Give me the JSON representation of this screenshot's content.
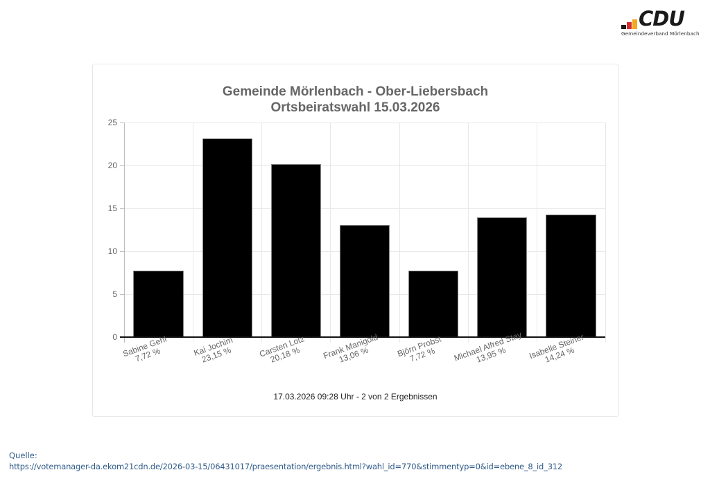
{
  "logo": {
    "wordmark": "CDU",
    "subtitle": "Gemeindeverband Mörlenbach",
    "bar_colors": [
      "#1a1a1a",
      "#d32f2f",
      "#f5a623"
    ]
  },
  "chart_data": {
    "type": "bar",
    "title": "Gemeinde Mörlenbach - Ober-Liebersbach",
    "subtitle": "Ortsbeiratswahl 15.03.2026",
    "categories": [
      "Sabine Gehl",
      "Kai Jochim",
      "Carsten Lotz",
      "Frank Manigold",
      "Björn Probst",
      "Michael Alfred Stay",
      "Isabelle Steiner"
    ],
    "value_labels": [
      "7,72 %",
      "23,15 %",
      "20,18 %",
      "13,06 %",
      "7,72 %",
      "13,95 %",
      "14,24 %"
    ],
    "values": [
      7.72,
      23.15,
      20.18,
      13.06,
      7.72,
      13.95,
      14.24
    ],
    "xlabel": "",
    "ylabel": "",
    "ylim": [
      0,
      25
    ],
    "yticks": [
      0,
      5,
      10,
      15,
      20,
      25
    ],
    "grid": true,
    "bar_color": "#000000",
    "legend": null
  },
  "footer_note": "17.03.2026 09:28 Uhr - 2 von 2 Ergebnissen",
  "source": {
    "label": "Quelle:",
    "url": "https://votemanager-da.ekom21cdn.de/2026-03-15/06431017/praesentation/ergebnis.html?wahl_id=770&stimmentyp=0&id=ebene_8_id_312"
  }
}
